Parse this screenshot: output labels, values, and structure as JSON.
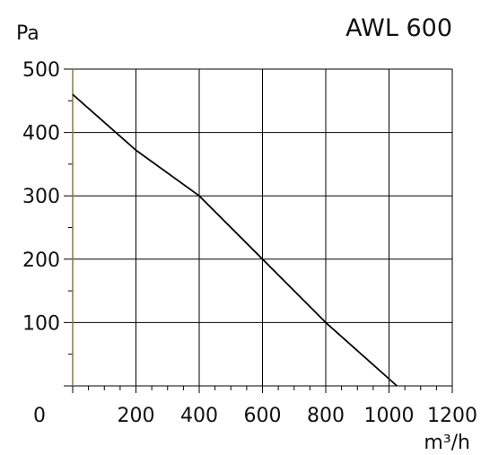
{
  "chart_data": {
    "type": "line",
    "title": "AWL 600",
    "xlabel": "m³/h",
    "ylabel": "Pa",
    "xlim": [
      0,
      1200
    ],
    "ylim": [
      0,
      500
    ],
    "x_ticks": [
      0,
      200,
      400,
      600,
      800,
      1000,
      1200
    ],
    "x_tick_labels": [
      "0",
      "200",
      "400",
      "600",
      "800",
      "1000",
      "1200"
    ],
    "y_ticks": [
      100,
      200,
      300,
      400,
      500
    ],
    "y_tick_labels": [
      "100",
      "200",
      "300",
      "400",
      "500"
    ],
    "grid": true,
    "series": [
      {
        "x": [
          0,
          200,
          400,
          600,
          800,
          1025
        ],
        "y": [
          460,
          372,
          300,
          200,
          100,
          0
        ],
        "color": "#000000"
      }
    ],
    "colors": {
      "grid": "#000000",
      "axis": "#8c7a3e",
      "line": "#000000"
    }
  }
}
